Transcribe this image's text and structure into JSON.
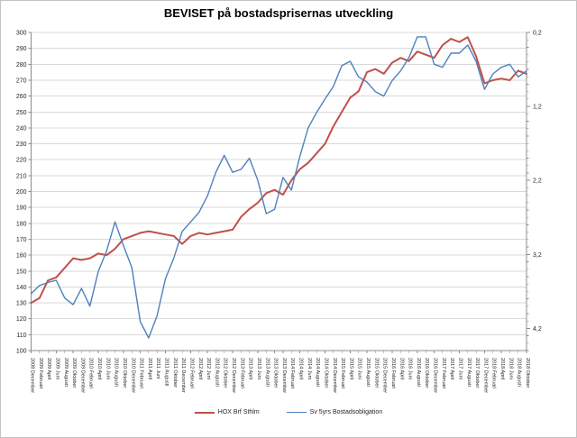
{
  "title": "BEVISET på bostadsprisernas utveckling",
  "colors": {
    "background": "#ffffff",
    "frame_border": "#c3c3c3",
    "gridline": "#d9d9d9",
    "axis": "#8c8c8c",
    "tick_text": "#262626",
    "series_red": "#c0504d",
    "series_blue": "#4f81bd"
  },
  "chart_data": {
    "type": "line",
    "title": "BEVISET på bostadsprisernas utveckling",
    "grid": true,
    "legend_position": "bottom",
    "categories": [
      "2008 December",
      "2009 Februari",
      "2009 April",
      "2009 Juni",
      "2009 Augusti",
      "2009 Oktober",
      "2009 December",
      "2010 Februari",
      "2010 April",
      "2010 Juni",
      "2010 Augusti",
      "2010 Oktober",
      "2010 December",
      "2011 Februari",
      "2011 April",
      "2011 Juni",
      "2011 Augusti",
      "2011 Oktober",
      "2011 December",
      "2012 Februari",
      "2012 April",
      "2012 Juni",
      "2012 Augusti",
      "2012 Oktober",
      "2012 December",
      "2013 Februari",
      "2013 April",
      "2013 Juni",
      "2013 Augusti",
      "2013 Oktober",
      "2013 December",
      "2014 Februari",
      "2014 April",
      "2014 Juni",
      "2014 Augusti",
      "2014 Oktober",
      "2014 December",
      "2015 Februari",
      "2015 April",
      "2015 Juni",
      "2015 Augusti",
      "2015 Oktober",
      "2015 December",
      "2016 Februari",
      "2016 April",
      "2016 Juni",
      "2016 Augusti",
      "2016 Oktober",
      "2016 December",
      "2017 Februari",
      "2017 April",
      "2017 Juni",
      "2017 Augusti",
      "2017 Oktober",
      "2017 December",
      "2018 Februari",
      "2018 April",
      "2018 Juni",
      "2018 Augusti",
      "2018 Oktober"
    ],
    "left_axis": {
      "min": 100,
      "max": 300,
      "step": 10
    },
    "right_axis": {
      "min": 0.2,
      "max": 4.5,
      "inverted": true,
      "minor_step": 0.1,
      "tick_values": [
        0.2,
        1.2,
        2.2,
        3.2,
        4.2
      ],
      "tick_labels": [
        "0,2",
        "1,2",
        "2,2",
        "3,2",
        "4,2"
      ]
    },
    "series": [
      {
        "name": "HOX Brf Sthlm",
        "color": "#c0504d",
        "axis": "left",
        "line_width": 2,
        "values": [
          130,
          133,
          144,
          146,
          152,
          158,
          157,
          158,
          161,
          160,
          164,
          170,
          172,
          174,
          175,
          174,
          173,
          172,
          167,
          172,
          174,
          173,
          174,
          175,
          176,
          184,
          189,
          193,
          199,
          201,
          198,
          207,
          214,
          218,
          224,
          230,
          241,
          250,
          259,
          263,
          275,
          277,
          274,
          281,
          284,
          282,
          288,
          286,
          284,
          292,
          296,
          294,
          297,
          285,
          268,
          270,
          271,
          270,
          276,
          274
        ]
      },
      {
        "name": "Sv 5yrs Bostadsobligation",
        "color": "#4f81bd",
        "axis": "right",
        "line_width": 1.4,
        "values": [
          3.73,
          3.62,
          3.58,
          3.55,
          3.79,
          3.88,
          3.66,
          3.9,
          3.43,
          3.15,
          2.76,
          3.08,
          3.38,
          4.11,
          4.33,
          4.03,
          3.53,
          3.25,
          2.89,
          2.76,
          2.63,
          2.41,
          2.09,
          1.86,
          2.09,
          2.05,
          1.9,
          2.2,
          2.65,
          2.59,
          2.16,
          2.33,
          1.88,
          1.49,
          1.28,
          1.1,
          0.93,
          0.65,
          0.59,
          0.8,
          0.87,
          1.0,
          1.06,
          0.85,
          0.72,
          0.54,
          0.26,
          0.26,
          0.63,
          0.67,
          0.48,
          0.48,
          0.37,
          0.59,
          0.97,
          0.76,
          0.67,
          0.63,
          0.8,
          0.72
        ]
      }
    ]
  }
}
